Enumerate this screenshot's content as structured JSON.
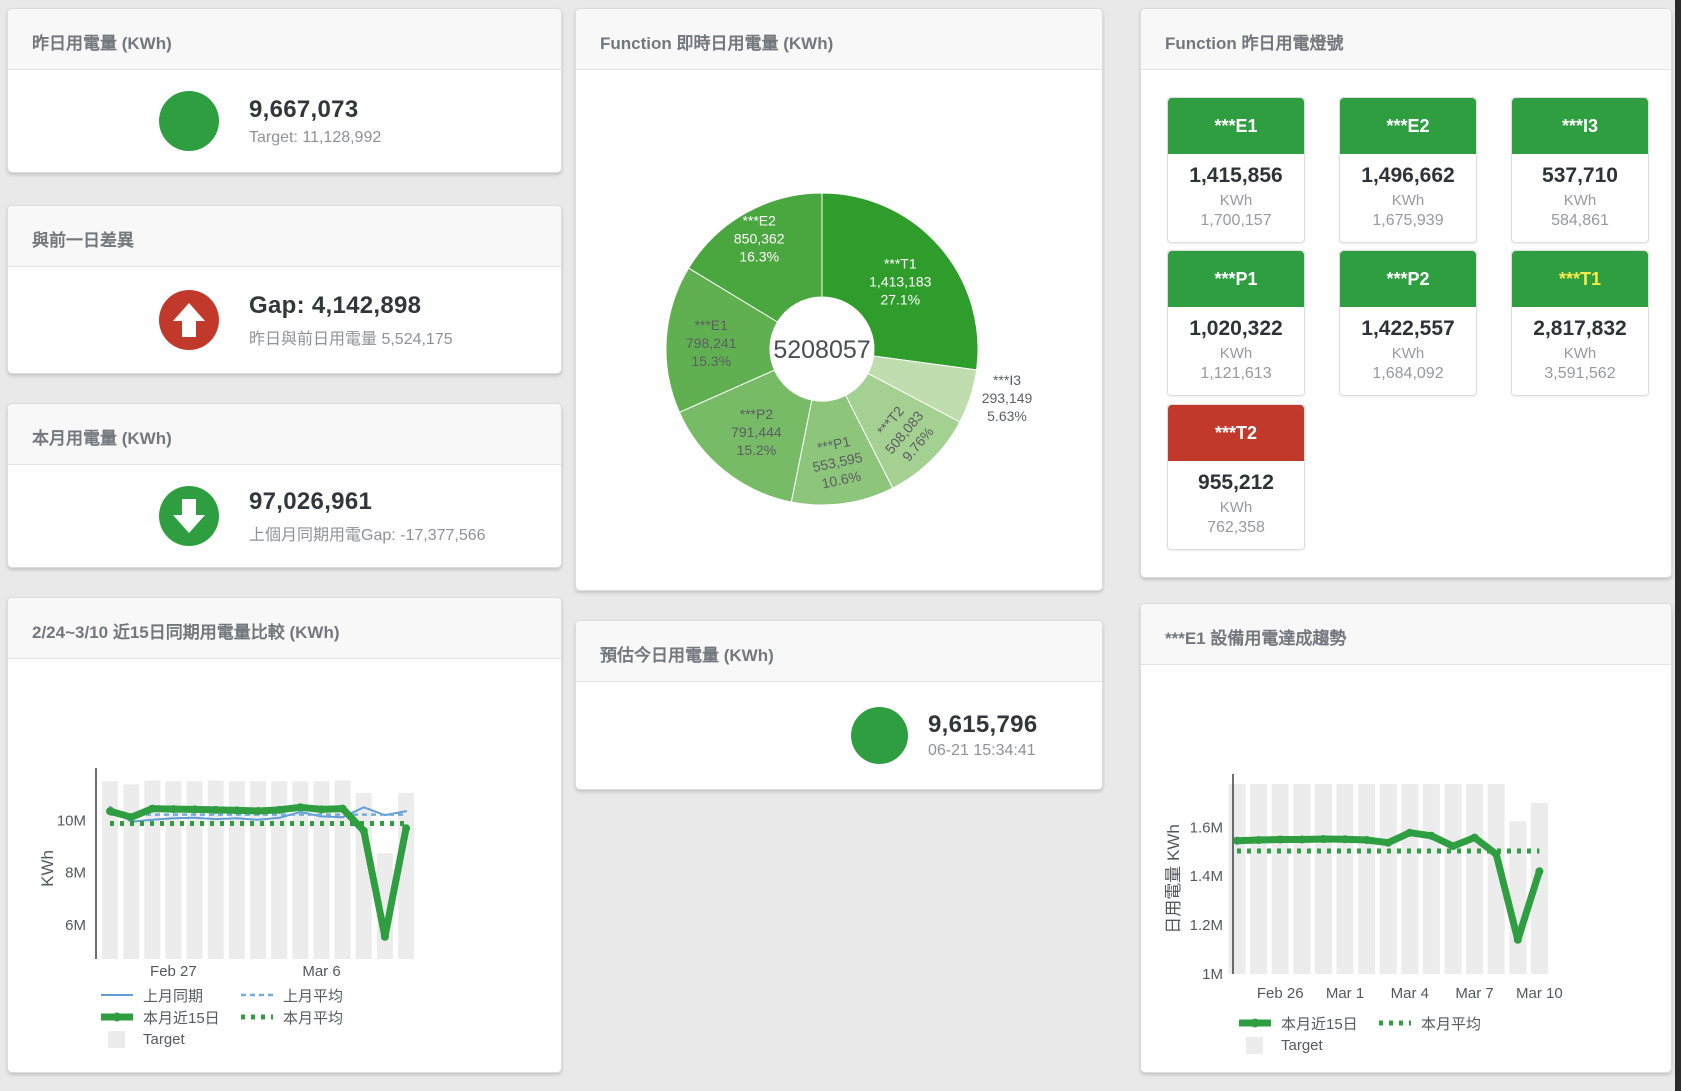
{
  "colors": {
    "green": "#2e9e40",
    "red": "#c0392b",
    "blue": "#5f9ed7",
    "blue_light": "#74abdb",
    "gray_bar": "#ececec",
    "yellow_label": "#f7ec4a"
  },
  "cards": {
    "yesterday": {
      "title": "昨日用電量 (KWh)",
      "value": "9,667,073",
      "subtitle": "Target: 11,128,992"
    },
    "gap": {
      "title": "與前一日差異",
      "value": "Gap: 4,142,898",
      "subtitle": "昨日與前日用電量 5,524,175"
    },
    "month": {
      "title": "本月用電量 (KWh)",
      "value": "97,026,961",
      "subtitle": "上個月同期用電Gap: -17,377,566"
    },
    "compare": {
      "title": "2/24~3/10 近15日同期用電量比較 (KWh)"
    },
    "donut": {
      "title": "Function 即時日用電量 (KWh)",
      "center_total": "5208057"
    },
    "estimate": {
      "title": "預估今日用電量 (KWh)",
      "value": "9,615,796",
      "subtitle": "06-21 15:34:41"
    },
    "lights": {
      "title": "Function 昨日用電燈號",
      "unit": "KWh",
      "tiles": [
        {
          "label": "***E1",
          "value": "1,415,856",
          "target": "1,700,157",
          "status": "ok"
        },
        {
          "label": "***E2",
          "value": "1,496,662",
          "target": "1,675,939",
          "status": "ok"
        },
        {
          "label": "***I3",
          "value": "537,710",
          "target": "584,861",
          "status": "ok"
        },
        {
          "label": "***P1",
          "value": "1,020,322",
          "target": "1,121,613",
          "status": "ok"
        },
        {
          "label": "***P2",
          "value": "1,422,557",
          "target": "1,684,092",
          "status": "ok"
        },
        {
          "label": "***T1",
          "value": "2,817,832",
          "target": "3,591,562",
          "status": "ok",
          "label_color": "#f7ec4a"
        },
        {
          "label": "***T2",
          "value": "955,212",
          "target": "762,358",
          "status": "alert"
        }
      ]
    },
    "e1trend": {
      "title": "***E1 設備用電達成趨勢"
    }
  },
  "chart_data": [
    {
      "type": "pie",
      "title": "Function 即時日用電量 (KWh)",
      "center_total": "5208057",
      "legend_position": "none",
      "slices": [
        {
          "name": "***T1",
          "value": 1413183,
          "value_label": "1,413,183",
          "pct": "27.1%",
          "color": "#2f9d2b",
          "lc": "#ffffff",
          "lr": 104
        },
        {
          "name": "***I3",
          "value": 293149,
          "value_label": "293,149",
          "pct": "5.63%",
          "color": "#c0ddaf",
          "lc": "#5b5e62",
          "dx": 185,
          "dy": 48
        },
        {
          "name": "***T2",
          "value": 508083,
          "value_label": "508,083",
          "pct": "9.76%",
          "color": "#a4d092",
          "lc": "#5b5e62",
          "lr": 116,
          "rot": -50
        },
        {
          "name": "***P1",
          "value": 553595,
          "value_label": "553,595",
          "pct": "10.6%",
          "color": "#8dc57b",
          "lc": "#5b5e62",
          "lr": 113,
          "rot": -12
        },
        {
          "name": "***P2",
          "value": 791444,
          "value_label": "791,444",
          "pct": "15.2%",
          "color": "#77bb66",
          "lc": "#5b5e62",
          "lr": 105
        },
        {
          "name": "***E1",
          "value": 798241,
          "value_label": "798,241",
          "pct": "15.3%",
          "color": "#60b052",
          "lc": "#5b5e62",
          "lr": 111
        },
        {
          "name": "***E2",
          "value": 850362,
          "value_label": "850,362",
          "pct": "16.3%",
          "color": "#4aa63f",
          "lc": "#ffffff",
          "lr": 128
        }
      ]
    },
    {
      "type": "line+bar",
      "title": "2/24~3/10 近15日同期用電量比較 (KWh)",
      "ylabel": "KWh",
      "unit": "M",
      "ylim": [
        4.7,
        11.62
      ],
      "grid": false,
      "x_dates": [
        "2/24",
        "2/25",
        "2/26",
        "2/27",
        "2/28",
        "3/1",
        "3/2",
        "3/3",
        "3/4",
        "3/5",
        "3/6",
        "3/7",
        "3/8",
        "3/9",
        "3/10"
      ],
      "xticks": [
        {
          "i": 3,
          "label": "Feb 27"
        },
        {
          "i": 10,
          "label": "Mar 6"
        }
      ],
      "yticks": [
        {
          "v": 6,
          "label": "6M"
        },
        {
          "v": 8,
          "label": "8M"
        },
        {
          "v": 10,
          "label": "10M"
        }
      ],
      "series": [
        {
          "name": "Target",
          "type": "bar",
          "color": "#ececec",
          "values": [
            11.5,
            11.38,
            11.52,
            11.5,
            11.5,
            11.52,
            11.5,
            11.5,
            11.5,
            11.5,
            11.5,
            11.52,
            11.05,
            8.75,
            11.05
          ]
        },
        {
          "name": "上月同期",
          "type": "line",
          "color": "#5f9ed7",
          "width": 2,
          "values": [
            10.52,
            9.95,
            10.02,
            10.08,
            10.1,
            10.05,
            10.08,
            10.02,
            10.1,
            10.32,
            10.15,
            10.12,
            10.5,
            10.2,
            10.35
          ]
        },
        {
          "name": "上月平均",
          "type": "line",
          "color": "#74abdb",
          "width": 2.5,
          "dash": "5,4",
          "const": 10.22
        },
        {
          "name": "本月平均",
          "type": "line",
          "color": "#2e9e40",
          "width": 5,
          "dash": "4,6",
          "const": 9.88
        },
        {
          "name": "本月近15日",
          "type": "line",
          "color": "#2e9e40",
          "width": 7,
          "markers": true,
          "values": [
            10.35,
            10.12,
            10.45,
            10.43,
            10.42,
            10.4,
            10.38,
            10.36,
            10.4,
            10.5,
            10.42,
            10.45,
            9.6,
            5.55,
            9.7
          ]
        }
      ],
      "legend": [
        [
          "上月同期",
          "上月平均"
        ],
        [
          "本月近15日",
          "本月平均"
        ],
        [
          "Target"
        ]
      ]
    },
    {
      "type": "line+bar",
      "title": "***E1 設備用電達成趨勢",
      "ylabel": "日用電量 KWh",
      "unit": "M",
      "ylim": [
        1.0,
        1.777
      ],
      "grid": false,
      "x_dates": [
        "2/24",
        "2/25",
        "2/26",
        "2/27",
        "2/28",
        "3/1",
        "3/2",
        "3/3",
        "3/4",
        "3/5",
        "3/6",
        "3/7",
        "3/8",
        "3/9",
        "3/10"
      ],
      "xticks": [
        {
          "i": 2,
          "label": "Feb 26"
        },
        {
          "i": 5,
          "label": "Mar 1"
        },
        {
          "i": 8,
          "label": "Mar 4"
        },
        {
          "i": 11,
          "label": "Mar 7"
        },
        {
          "i": 14,
          "label": "Mar 10"
        }
      ],
      "yticks": [
        {
          "v": 1,
          "label": "1M"
        },
        {
          "v": 1.2,
          "label": "1.2M"
        },
        {
          "v": 1.4,
          "label": "1.4M"
        },
        {
          "v": 1.6,
          "label": "1.6M"
        }
      ],
      "series": [
        {
          "name": "Target",
          "type": "bar",
          "color": "#ececec",
          "values": [
            1.777,
            1.777,
            1.777,
            1.777,
            1.777,
            1.777,
            1.777,
            1.777,
            1.777,
            1.777,
            1.777,
            1.777,
            1.777,
            1.625,
            1.7
          ]
        },
        {
          "name": "本月平均",
          "type": "line",
          "color": "#2e9e40",
          "width": 5,
          "dash": "4,6",
          "const": 1.503
        },
        {
          "name": "本月近15日",
          "type": "line",
          "color": "#2e9e40",
          "width": 7,
          "markers": true,
          "values": [
            1.545,
            1.548,
            1.55,
            1.55,
            1.552,
            1.551,
            1.548,
            1.537,
            1.578,
            1.565,
            1.523,
            1.558,
            1.49,
            1.14,
            1.42
          ]
        }
      ],
      "legend": [
        [
          "本月近15日",
          "本月平均"
        ],
        [
          "Target"
        ]
      ]
    }
  ]
}
